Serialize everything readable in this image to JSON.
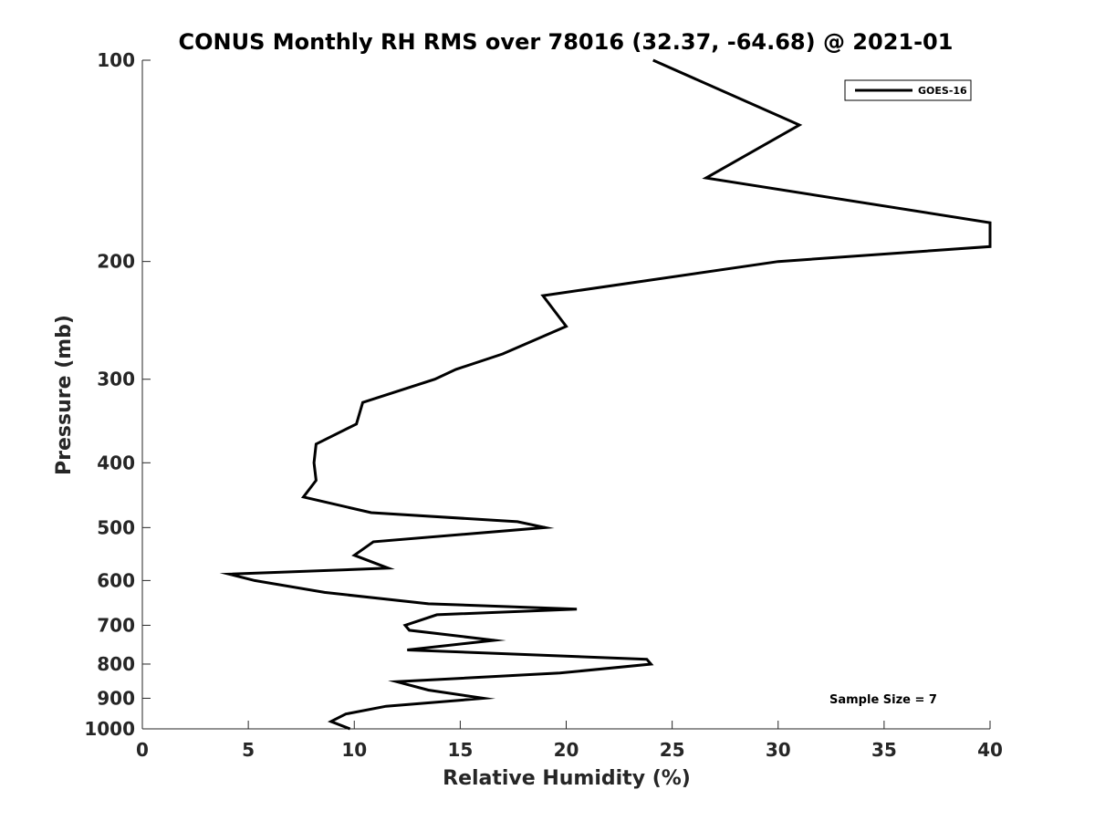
{
  "chart_data": {
    "type": "line",
    "title": "CONUS Monthly RH RMS over 78016 (32.37, -64.68) @ 2021-01",
    "xlabel": "Relative Humidity (%)",
    "ylabel": "Pressure (mb)",
    "xlim": [
      0,
      40
    ],
    "ylim": [
      100,
      1000
    ],
    "yscale": "log",
    "y_reversed": true,
    "x_ticks": [
      "0",
      "5",
      "10",
      "15",
      "20",
      "25",
      "30",
      "35",
      "40"
    ],
    "y_ticks": [
      "100",
      "200",
      "300",
      "400",
      "500",
      "600",
      "700",
      "800",
      "900",
      "1000"
    ],
    "grid": false,
    "legend_position": "top-right",
    "annotation": "Sample Size = 7",
    "series": [
      {
        "name": "GOES-16",
        "color": "#000000",
        "points": [
          [
            24.1,
            100
          ],
          [
            31.0,
            125
          ],
          [
            26.6,
            150
          ],
          [
            40,
            175
          ],
          [
            40,
            190
          ],
          [
            30.0,
            200
          ],
          [
            18.9,
            225
          ],
          [
            20.0,
            250
          ],
          [
            17.0,
            275
          ],
          [
            14.8,
            290
          ],
          [
            13.8,
            300
          ],
          [
            10.4,
            325
          ],
          [
            10.1,
            350
          ],
          [
            8.2,
            375
          ],
          [
            8.1,
            400
          ],
          [
            8.2,
            425
          ],
          [
            7.6,
            450
          ],
          [
            10.8,
            475
          ],
          [
            17.7,
            490
          ],
          [
            19.0,
            500
          ],
          [
            10.9,
            525
          ],
          [
            10.0,
            550
          ],
          [
            11.6,
            575
          ],
          [
            4.1,
            587
          ],
          [
            5.3,
            600
          ],
          [
            8.6,
            625
          ],
          [
            13.5,
            650
          ],
          [
            20.5,
            662
          ],
          [
            13.9,
            675
          ],
          [
            12.4,
            700
          ],
          [
            12.6,
            712
          ],
          [
            16.6,
            737
          ],
          [
            12.5,
            762
          ],
          [
            23.8,
            787
          ],
          [
            24.0,
            800
          ],
          [
            19.7,
            825
          ],
          [
            12.0,
            850
          ],
          [
            13.5,
            875
          ],
          [
            16.1,
            900
          ],
          [
            11.5,
            925
          ],
          [
            9.6,
            950
          ],
          [
            8.9,
            975
          ],
          [
            9.8,
            1000
          ]
        ]
      }
    ]
  }
}
